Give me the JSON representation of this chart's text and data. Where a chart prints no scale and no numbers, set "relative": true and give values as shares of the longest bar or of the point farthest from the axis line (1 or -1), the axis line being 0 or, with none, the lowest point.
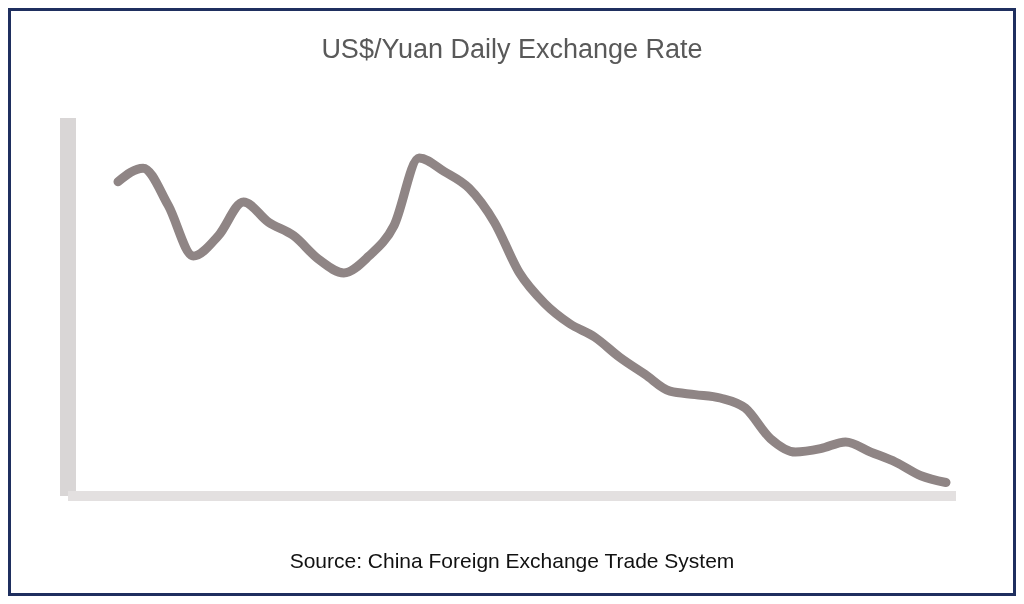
{
  "chart_data": {
    "type": "line",
    "title": "US$/Yuan Daily Exchange Rate",
    "annotations": [
      "Source: China Foreign Exchange Trade System"
    ],
    "relative": true,
    "categories": [
      null,
      null,
      null,
      null,
      null,
      null,
      null,
      null,
      null,
      null,
      null,
      null,
      null,
      null,
      null,
      null,
      null,
      null,
      null,
      null,
      null,
      null,
      null,
      null,
      null,
      null,
      null,
      null,
      null,
      null,
      null,
      null,
      null,
      null
    ],
    "series": [
      {
        "color": "#8f8585",
        "values": [
          0.93,
          0.97,
          0.86,
          0.71,
          0.77,
          0.87,
          0.81,
          0.77,
          0.7,
          0.66,
          0.71,
          0.8,
          1,
          0.96,
          0.91,
          0.81,
          0.66,
          0.57,
          0.51,
          0.47,
          0.41,
          0.36,
          0.31,
          0.3,
          0.29,
          0.26,
          0.17,
          0.13,
          0.14,
          0.16,
          0.13,
          0.1,
          0.06,
          0.04
        ]
      }
    ]
  }
}
